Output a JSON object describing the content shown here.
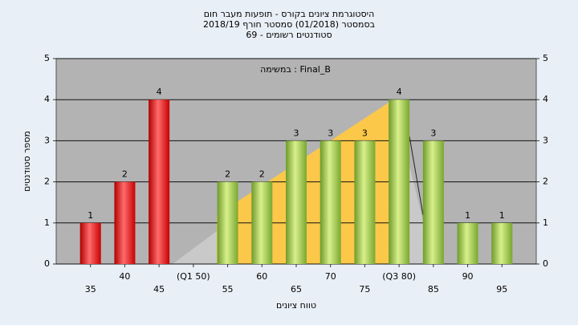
{
  "chart_data": {
    "type": "bar",
    "title": [
      "היסטוגרמת ציונים בקורס - תופעות מעבר חום",
      "בסמסטר  (01/2018)  סמסטר חורף 2018/19",
      "סטודנטים רשומים - 69"
    ],
    "annotation": "במשימה : Final_B",
    "x_label": "טווח ציונים",
    "y_label": "מספר סטודנטים",
    "categories": [
      "35",
      "40",
      "45",
      "(Q1 50)",
      "55",
      "60",
      "65",
      "70",
      "75",
      "(Q3 80)",
      "85",
      "90",
      "95"
    ],
    "values": [
      1,
      2,
      4,
      0,
      2,
      2,
      3,
      3,
      3,
      4,
      3,
      1,
      1
    ],
    "colors": [
      "red",
      "red",
      "red",
      "green",
      "green",
      "green",
      "green",
      "green",
      "green",
      "green",
      "green",
      "green",
      "green"
    ],
    "ylim": [
      0,
      5
    ],
    "yticks": [
      0,
      1,
      2,
      3,
      4,
      5
    ],
    "y2lim": [
      0,
      5
    ],
    "y2ticks": [
      0,
      1,
      2,
      3,
      4,
      5
    ],
    "grid": true
  }
}
